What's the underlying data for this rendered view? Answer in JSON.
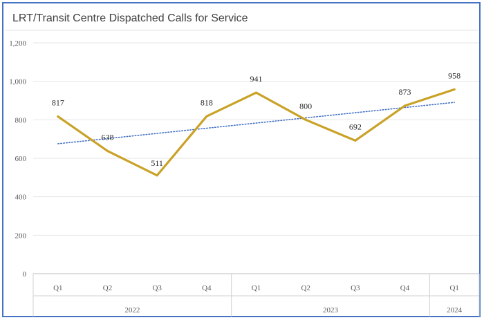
{
  "title": "LRT/Transit Centre Dispatched Calls for Service",
  "chart_data": {
    "type": "line",
    "title": "LRT/Transit Centre Dispatched Calls for Service",
    "categories": [
      "Q1",
      "Q2",
      "Q3",
      "Q4",
      "Q1",
      "Q2",
      "Q3",
      "Q4",
      "Q1"
    ],
    "year_groups": [
      {
        "label": "2022",
        "count": 4
      },
      {
        "label": "2023",
        "count": 4
      },
      {
        "label": "2024",
        "count": 1
      }
    ],
    "series": [
      {
        "values": [
          817,
          638,
          511,
          818,
          941,
          800,
          692,
          873,
          958
        ],
        "color": "#c9a227"
      }
    ],
    "data_labels": [
      "817",
      "638",
      "511",
      "818",
      "941",
      "800",
      "692",
      "873",
      "958"
    ],
    "trendline": {
      "type": "linear",
      "style": "dotted",
      "color": "#4472c4"
    },
    "ylim": [
      0,
      1200
    ],
    "yticks": [
      0,
      200,
      400,
      600,
      800,
      1000,
      1200
    ],
    "ytick_labels": [
      "0",
      "200",
      "400",
      "600",
      "800",
      "1,000",
      "1,200"
    ],
    "grid": true,
    "xlabel": "",
    "ylabel": ""
  }
}
